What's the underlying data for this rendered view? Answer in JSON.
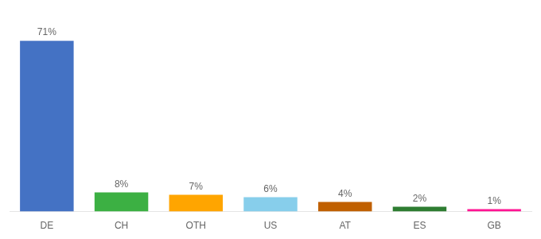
{
  "chart_data": {
    "type": "bar",
    "categories": [
      "DE",
      "CH",
      "OTH",
      "US",
      "AT",
      "ES",
      "GB"
    ],
    "values": [
      71,
      8,
      7,
      6,
      4,
      2,
      1
    ],
    "value_labels": [
      "71%",
      "8%",
      "7%",
      "6%",
      "4%",
      "2%",
      "1%"
    ],
    "colors": [
      "#4472C4",
      "#3CB043",
      "#FFA500",
      "#87CEEB",
      "#C06000",
      "#2E7D32",
      "#FF1493"
    ],
    "ylim": [
      0,
      80
    ],
    "data_labels": true,
    "tick_labels": "x",
    "grid": false
  }
}
